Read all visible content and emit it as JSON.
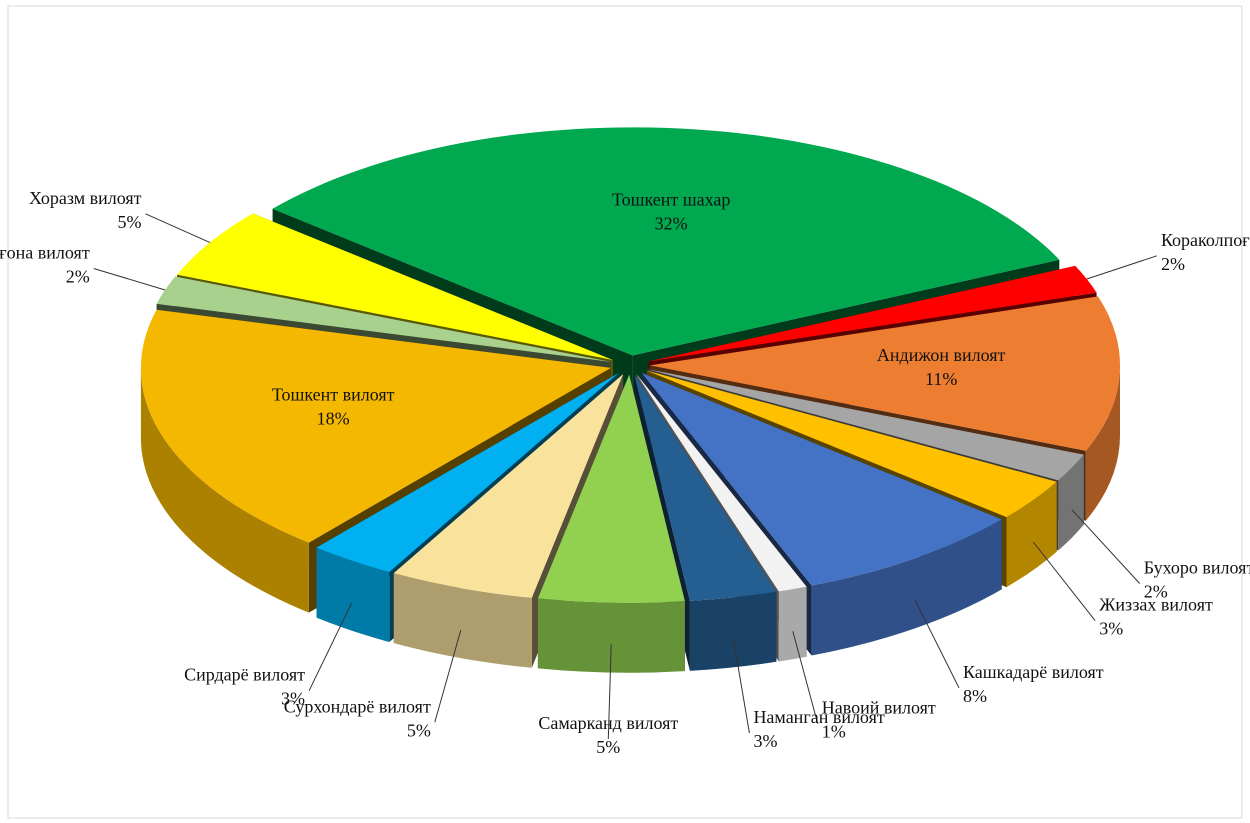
{
  "chart_data": {
    "type": "pie3d",
    "categories": [
      "Тошкент шахар",
      "Кораколпоғистон Республикаси",
      "Андижон вилоят",
      "Бухоро вилоят",
      "Жиззах вилоят",
      "Кашкадарё вилоят",
      "Навоий вилоят",
      "Наманган вилоят",
      "Самарканд вилоят",
      "Сурхондарё вилоят",
      "Сирдарё вилоят",
      "Тошкент вилоят",
      "Фарғона вилоят",
      "Хоразм вилоят"
    ],
    "values": [
      32,
      2,
      11,
      2,
      3,
      8,
      1,
      3,
      5,
      5,
      3,
      18,
      2,
      5
    ],
    "value_labels": [
      "32%",
      "2%",
      "11%",
      "2%",
      "3%",
      "8%",
      "1%",
      "3%",
      "5%",
      "5%",
      "3%",
      "18%",
      "2%",
      "5%"
    ],
    "colors": [
      "#00a84f",
      "#ff0000",
      "#ed7d31",
      "#a5a5a5",
      "#ffc000",
      "#4472c4",
      "#f2f2f2",
      "#255e91",
      "#92d050",
      "#f9e29c",
      "#00b0f0",
      "#f5b800",
      "#a9d18e",
      "#ffff00"
    ]
  }
}
